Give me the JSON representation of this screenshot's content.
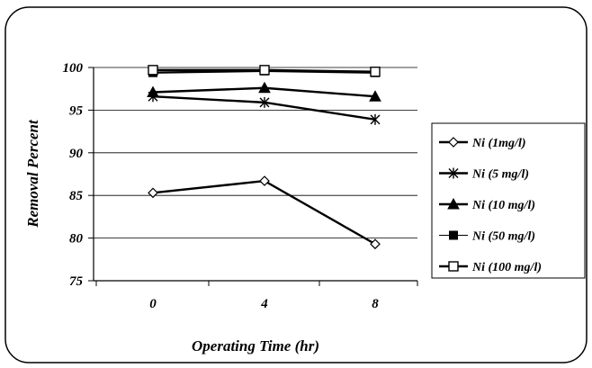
{
  "chart_data": {
    "type": "line",
    "title": "",
    "xlabel": "Operating Time (hr)",
    "ylabel": "Removal Percent",
    "categories": [
      "0",
      "4",
      "8"
    ],
    "ylim": [
      75,
      100
    ],
    "yticks": [
      "75",
      "80",
      "85",
      "90",
      "95",
      "100"
    ],
    "grid": true,
    "legend_placement": "right",
    "series": [
      {
        "name": "Ni (1mg/l)",
        "marker": "diamond-open",
        "values": [
          85.3,
          86.7,
          79.3
        ]
      },
      {
        "name": "Ni (5 mg/l)",
        "marker": "asterisk",
        "values": [
          96.6,
          95.9,
          93.9
        ]
      },
      {
        "name": "Ni (10 mg/l)",
        "marker": "triangle-filled",
        "values": [
          97.1,
          97.6,
          96.6
        ]
      },
      {
        "name": "Ni (50 mg/l)",
        "marker": "square-filled",
        "values": [
          99.4,
          99.6,
          99.4
        ]
      },
      {
        "name": "Ni (100 mg/l)",
        "marker": "square-open",
        "values": [
          99.7,
          99.7,
          99.5
        ]
      }
    ]
  }
}
